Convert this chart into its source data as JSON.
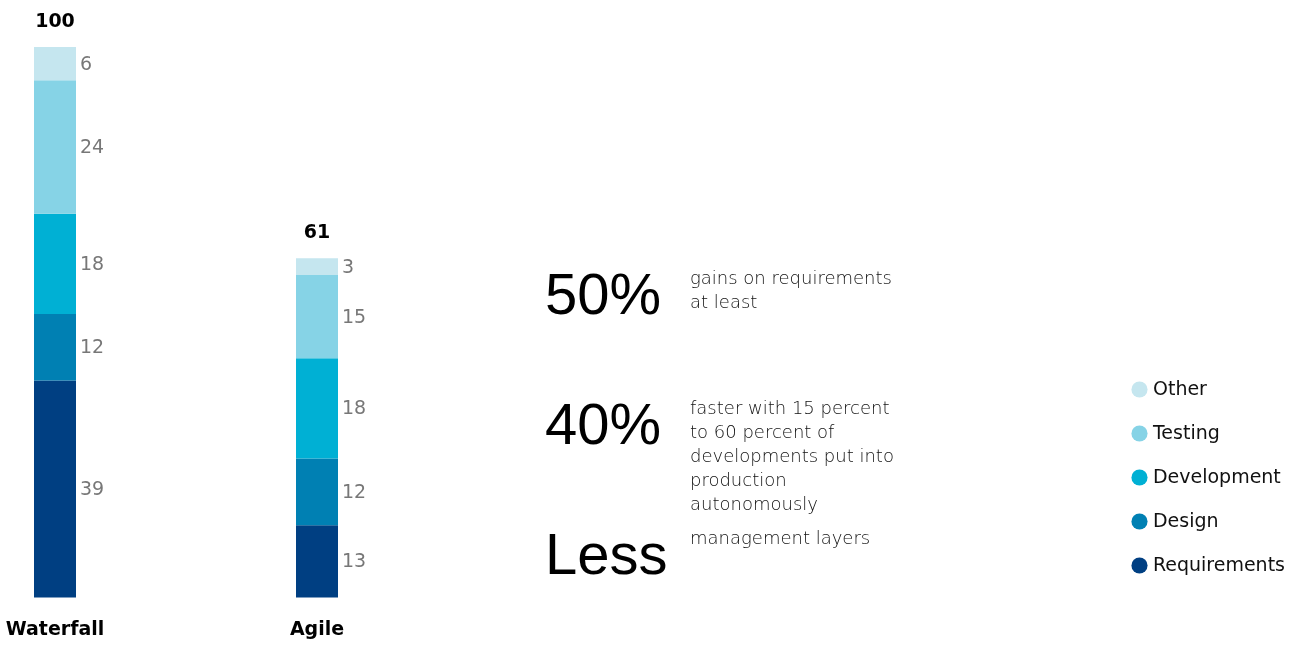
{
  "chart_data": {
    "type": "bar",
    "stacked": true,
    "categories": [
      "Waterfall",
      "Agile"
    ],
    "series": [
      {
        "name": "Requirements",
        "color": "#003f82",
        "values": [
          39,
          13
        ]
      },
      {
        "name": "Design",
        "color": "#0080b3",
        "values": [
          12,
          12
        ]
      },
      {
        "name": "Development",
        "color": "#00b0d4",
        "values": [
          18,
          18
        ]
      },
      {
        "name": "Testing",
        "color": "#86d3e6",
        "values": [
          24,
          15
        ]
      },
      {
        "name": "Other",
        "color": "#c5e6ef",
        "values": [
          6,
          3
        ]
      }
    ],
    "totals": [
      "100",
      "61"
    ],
    "data_labels": true,
    "legend": "right",
    "annotations": [
      "50%",
      "gains on requirements at least",
      "40%",
      "faster with 15 percent to 60 percent of developments put into production autonomously",
      "Less",
      "management layers"
    ]
  }
}
